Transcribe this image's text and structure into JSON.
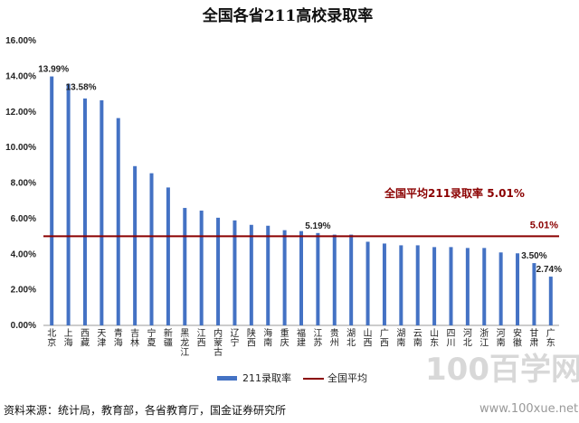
{
  "chart_data": {
    "type": "bar",
    "title": "全国各省211高校录取率",
    "categories": [
      "北京",
      "上海",
      "西藏",
      "天津",
      "青海",
      "吉林",
      "宁夏",
      "新疆",
      "黑龙江",
      "江西",
      "内蒙古",
      "辽宁",
      "陕西",
      "海南",
      "重庆",
      "福建",
      "江苏",
      "贵州",
      "湖北",
      "山西",
      "广西",
      "湖南",
      "云南",
      "山东",
      "四川",
      "河北",
      "浙江",
      "河南",
      "安徽",
      "甘肃",
      "广东"
    ],
    "series": [
      {
        "name": "211录取率",
        "color": "#4472c4",
        "values": [
          13.99,
          13.58,
          12.75,
          12.65,
          11.65,
          8.95,
          8.55,
          7.75,
          6.6,
          6.45,
          6.05,
          5.9,
          5.65,
          5.6,
          5.35,
          5.3,
          5.19,
          5.1,
          5.1,
          4.7,
          4.6,
          4.5,
          4.5,
          4.4,
          4.4,
          4.35,
          4.35,
          4.1,
          4.05,
          3.5,
          2.74
        ]
      }
    ],
    "average": {
      "name": "全国平均",
      "value": 5.01,
      "color": "#8b0000",
      "annotation": "全国平均211录取率 5.01%",
      "label": "5.01%"
    },
    "data_labels": [
      {
        "index": 0,
        "text": "13.99%"
      },
      {
        "index": 1,
        "text": "13.58%"
      },
      {
        "index": 16,
        "text": "5.19%"
      },
      {
        "index": 29,
        "text": "3.50%"
      },
      {
        "index": 30,
        "text": "2.74%"
      }
    ],
    "y_ticks": [
      "0.00%",
      "2.00%",
      "4.00%",
      "6.00%",
      "8.00%",
      "10.00%",
      "12.00%",
      "14.00%",
      "16.00%"
    ],
    "ylim": [
      0,
      16
    ],
    "grid": false,
    "legend_position": "bottom"
  },
  "source_note": "资料来源：统计局，教育部，各省教育厅，国金证券研究所",
  "watermark": {
    "big": "100百学网",
    "url": "www.100xue.net"
  }
}
